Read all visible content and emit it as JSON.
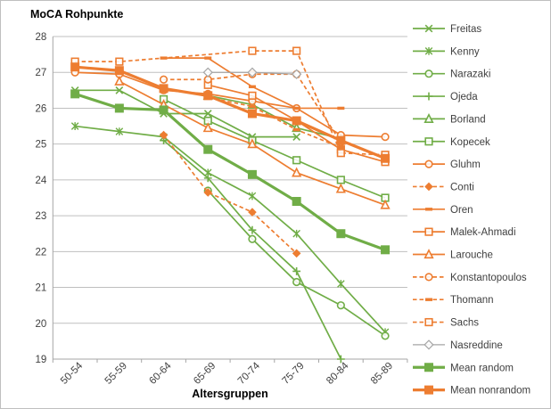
{
  "chart_data": {
    "type": "line",
    "title": "MoCA Rohpunkte",
    "xlabel": "Altersgruppen",
    "ylabel": "",
    "categories": [
      "50-54",
      "55-59",
      "60-64",
      "65-69",
      "70-74",
      "75-79",
      "80-84",
      "85-89"
    ],
    "ylim": [
      19,
      28
    ],
    "yticks": [
      19,
      20,
      21,
      22,
      23,
      24,
      25,
      26,
      27,
      28
    ],
    "grid": true,
    "legend_position": "right",
    "colors": {
      "random_green": "#70AD47",
      "nonrandom_orange": "#ED7D31",
      "reference_gray": "#A5A5A5",
      "gridline": "#BFBFBF",
      "axis": "#A6A6A6",
      "text": "#404040"
    },
    "series": [
      {
        "name": "Freitas",
        "color": "green",
        "marker": "x",
        "dashed": false,
        "thick": false,
        "values": [
          26.5,
          26.5,
          25.85,
          25.85,
          25.2,
          25.2,
          null,
          null
        ]
      },
      {
        "name": "Kenny",
        "color": "green",
        "marker": "asterisk",
        "dashed": false,
        "thick": false,
        "values": [
          25.5,
          25.35,
          25.2,
          24.2,
          23.55,
          22.5,
          21.1,
          19.75
        ]
      },
      {
        "name": "Narazaki",
        "color": "green",
        "marker": "circle",
        "dashed": false,
        "thick": false,
        "values": [
          null,
          null,
          null,
          23.7,
          22.35,
          21.15,
          20.5,
          19.65
        ]
      },
      {
        "name": "Ojeda",
        "color": "green",
        "marker": "plus",
        "dashed": false,
        "thick": false,
        "values": [
          null,
          null,
          25.1,
          24.05,
          22.6,
          21.45,
          19.0,
          null
        ]
      },
      {
        "name": "Borland",
        "color": "green",
        "marker": "triangle",
        "dashed": false,
        "thick": false,
        "values": [
          null,
          null,
          null,
          26.35,
          26.1,
          25.45,
          25.15,
          null
        ]
      },
      {
        "name": "Kopecek",
        "color": "green",
        "marker": "square",
        "dashed": false,
        "thick": false,
        "values": [
          null,
          null,
          26.25,
          25.65,
          25.1,
          24.55,
          24.0,
          23.5
        ]
      },
      {
        "name": "Gluhm",
        "color": "orange",
        "marker": "circle",
        "dashed": false,
        "thick": false,
        "values": [
          27.0,
          26.95,
          26.5,
          26.4,
          26.2,
          26.0,
          25.25,
          25.2
        ]
      },
      {
        "name": "Conti",
        "color": "orange",
        "marker": "diamond_filled",
        "dashed": true,
        "thick": false,
        "values": [
          null,
          null,
          25.25,
          23.65,
          23.1,
          21.95,
          null,
          null
        ]
      },
      {
        "name": "Oren",
        "color": "orange",
        "marker": "dash",
        "dashed": false,
        "thick": false,
        "values": [
          null,
          null,
          27.4,
          27.4,
          26.6,
          26.0,
          26.0,
          null
        ]
      },
      {
        "name": "Malek-Ahmadi",
        "color": "orange",
        "marker": "square",
        "dashed": false,
        "thick": false,
        "values": [
          null,
          null,
          null,
          26.65,
          26.35,
          25.65,
          24.85,
          24.5
        ]
      },
      {
        "name": "Larouche",
        "color": "orange",
        "marker": "triangle",
        "dashed": false,
        "thick": false,
        "values": [
          null,
          26.75,
          26.1,
          25.45,
          25.0,
          24.2,
          23.75,
          23.3
        ]
      },
      {
        "name": "Konstantopoulos",
        "color": "orange",
        "marker": "circle",
        "dashed": true,
        "thick": false,
        "values": [
          null,
          null,
          26.8,
          26.8,
          26.95,
          26.95,
          25.05,
          null
        ]
      },
      {
        "name": "Thomann",
        "color": "orange",
        "marker": "dash",
        "dashed": true,
        "thick": false,
        "values": [
          null,
          null,
          null,
          26.3,
          26.05,
          25.4,
          24.9,
          null
        ]
      },
      {
        "name": "Sachs",
        "color": "orange",
        "marker": "square",
        "dashed": true,
        "thick": false,
        "values": [
          27.3,
          27.3,
          null,
          null,
          27.6,
          27.6,
          24.75,
          24.7
        ]
      },
      {
        "name": "Nasreddine",
        "color": "gray",
        "marker": "diamond_open",
        "dashed": false,
        "thick": false,
        "values": [
          null,
          null,
          null,
          27.0,
          27.0,
          26.95,
          null,
          null
        ]
      },
      {
        "name": "Mean random",
        "color": "green",
        "marker": "square_filled",
        "dashed": false,
        "thick": true,
        "values": [
          26.4,
          26.0,
          25.95,
          24.85,
          24.15,
          23.4,
          22.5,
          22.05
        ]
      },
      {
        "name": "Mean nonrandom",
        "color": "orange",
        "marker": "square_filled",
        "dashed": false,
        "thick": true,
        "values": [
          27.15,
          27.05,
          26.55,
          26.35,
          25.85,
          25.65,
          25.1,
          24.6
        ]
      }
    ]
  }
}
